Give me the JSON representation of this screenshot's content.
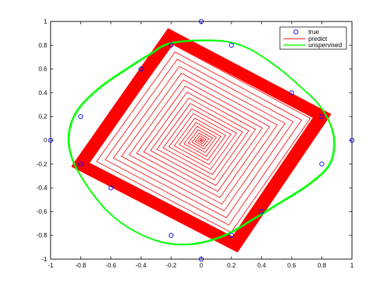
{
  "chart_data": {
    "type": "line",
    "title": "",
    "xlabel": "",
    "ylabel": "",
    "xlim": [
      -1,
      1
    ],
    "ylim": [
      -1,
      1
    ],
    "xticks": [
      "-1",
      "-0.8",
      "-0.6",
      "-0.4",
      "-0.2",
      "0",
      "0.2",
      "0.4",
      "0.6",
      "0.8",
      "1"
    ],
    "yticks": [
      "1",
      "0.8",
      "0.6",
      "0.4",
      "0.2",
      "0",
      "-0.2",
      "-0.4",
      "-0.6",
      "-0.8",
      "-1"
    ],
    "grid": false,
    "legend_placement": "top-right",
    "legend": [
      {
        "label": "true",
        "style": "marker-o",
        "color": "#0000ff"
      },
      {
        "label": "predict",
        "style": "line",
        "color": "#ff0000"
      },
      {
        "label": "unspervised",
        "style": "line",
        "color": "#00ff00"
      }
    ],
    "series": [
      {
        "name": "true",
        "style": "markers",
        "color": "#0000ff",
        "points": [
          [
            0,
            1
          ],
          [
            -0.2,
            0.8
          ],
          [
            0.2,
            0.8
          ],
          [
            -0.4,
            0.6
          ],
          [
            0.6,
            0.4
          ],
          [
            -0.8,
            0.2
          ],
          [
            0.8,
            0.2
          ],
          [
            -1,
            0
          ],
          [
            1,
            0
          ],
          [
            -0.8,
            -0.2
          ],
          [
            0.8,
            -0.2
          ],
          [
            -0.6,
            -0.4
          ],
          [
            0.4,
            -0.6
          ],
          [
            -0.2,
            -0.8
          ],
          [
            0.2,
            -0.8
          ],
          [
            0,
            -1
          ]
        ]
      },
      {
        "name": "predict",
        "style": "spiral",
        "color": "#ff0000",
        "outer_corners": [
          [
            -0.22,
            0.94
          ],
          [
            0.86,
            0.22
          ],
          [
            0.24,
            -0.94
          ],
          [
            -0.86,
            -0.22
          ]
        ],
        "center": [
          0,
          0
        ],
        "turns": 22
      },
      {
        "name": "unspervised",
        "style": "closed-curve",
        "color": "#00ff00",
        "points": [
          [
            -0.2,
            0.82
          ],
          [
            0.1,
            0.84
          ],
          [
            0.3,
            0.78
          ],
          [
            0.5,
            0.62
          ],
          [
            0.65,
            0.46
          ],
          [
            0.78,
            0.3
          ],
          [
            0.86,
            0.12
          ],
          [
            0.88,
            -0.05
          ],
          [
            0.84,
            -0.22
          ],
          [
            0.7,
            -0.38
          ],
          [
            0.5,
            -0.54
          ],
          [
            0.32,
            -0.68
          ],
          [
            0.15,
            -0.8
          ],
          [
            -0.05,
            -0.87
          ],
          [
            -0.25,
            -0.86
          ],
          [
            -0.45,
            -0.76
          ],
          [
            -0.62,
            -0.6
          ],
          [
            -0.76,
            -0.38
          ],
          [
            -0.86,
            -0.15
          ],
          [
            -0.88,
            0.06
          ],
          [
            -0.82,
            0.26
          ],
          [
            -0.68,
            0.44
          ],
          [
            -0.5,
            0.6
          ],
          [
            -0.35,
            0.72
          ]
        ]
      }
    ]
  },
  "colors": {
    "true": "#0000ff",
    "predict": "#ff0000",
    "unsupervised": "#00ff00",
    "axis": "#000000"
  }
}
